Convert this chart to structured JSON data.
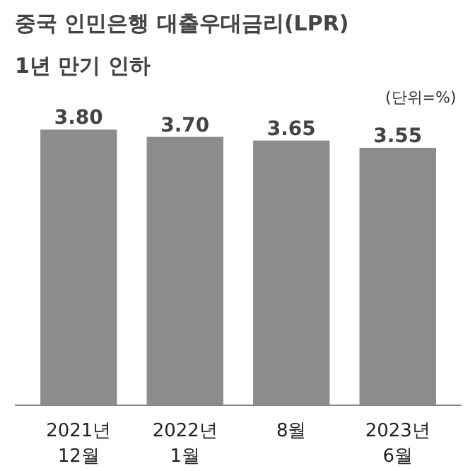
{
  "chart_data": {
    "type": "bar",
    "title": "중국 인민은행 대출우대금리(LPR)",
    "subtitle": "1년 만기 인하",
    "annotations": [
      "(단위=%)"
    ],
    "categories": [
      "2021년\n12월",
      "2022년\n1월",
      "8월",
      "2023년\n6월"
    ],
    "values": [
      3.8,
      3.7,
      3.65,
      3.55
    ],
    "color": "#8c8c8c",
    "tick_labels": "x",
    "data_labels": true,
    "value_labels": [
      "3.80",
      "3.70",
      "3.65",
      "3.55"
    ],
    "grid": false
  }
}
